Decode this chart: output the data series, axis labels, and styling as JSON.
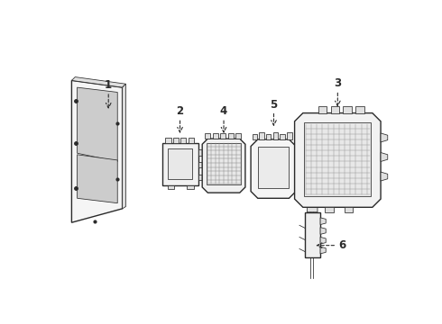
{
  "bg_color": "#ffffff",
  "line_color": "#2a2a2a",
  "label_color": "#111111",
  "lw_main": 1.0,
  "lw_thin": 0.55,
  "lw_hatch": 0.35
}
